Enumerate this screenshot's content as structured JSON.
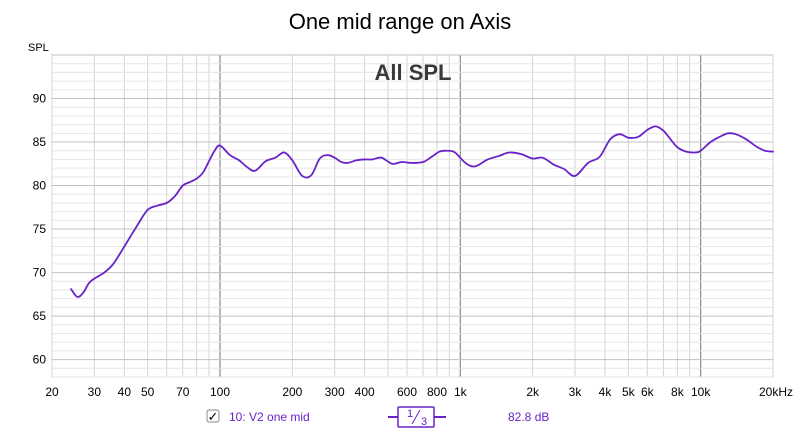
{
  "chart_data": {
    "type": "line",
    "title": "One mid range on Axis",
    "ylabel": "SPL",
    "plot_label": "All SPL",
    "x_scale": "log",
    "xlim": [
      20,
      20000
    ],
    "ylim": [
      58,
      95
    ],
    "grid": true,
    "x_ticks": [
      {
        "v": 20,
        "label": "20"
      },
      {
        "v": 30,
        "label": "30"
      },
      {
        "v": 40,
        "label": "40"
      },
      {
        "v": 50,
        "label": "50"
      },
      {
        "v": 70,
        "label": "70"
      },
      {
        "v": 100,
        "label": "100"
      },
      {
        "v": 200,
        "label": "200"
      },
      {
        "v": 300,
        "label": "300"
      },
      {
        "v": 400,
        "label": "400"
      },
      {
        "v": 600,
        "label": "600"
      },
      {
        "v": 800,
        "label": "800"
      },
      {
        "v": 1000,
        "label": "1k"
      },
      {
        "v": 2000,
        "label": "2k"
      },
      {
        "v": 3000,
        "label": "3k"
      },
      {
        "v": 4000,
        "label": "4k"
      },
      {
        "v": 5000,
        "label": "5k"
      },
      {
        "v": 6000,
        "label": "6k"
      },
      {
        "v": 8000,
        "label": "8k"
      },
      {
        "v": 10000,
        "label": "10k"
      },
      {
        "v": 20000,
        "label": "20kHz"
      }
    ],
    "y_ticks": [
      60,
      65,
      70,
      75,
      80,
      85,
      90
    ],
    "series": [
      {
        "color": "#6a22c8",
        "x": [
          24,
          25.5,
          27,
          28.5,
          30,
          33,
          36,
          40,
          45,
          50,
          55,
          60,
          65,
          70,
          75,
          80,
          85,
          90,
          95,
          100,
          110,
          120,
          130,
          140,
          155,
          170,
          185,
          200,
          220,
          240,
          260,
          280,
          300,
          320,
          340,
          370,
          400,
          430,
          470,
          520,
          570,
          630,
          700,
          760,
          820,
          880,
          950,
          1050,
          1150,
          1300,
          1450,
          1600,
          1800,
          2000,
          2200,
          2450,
          2700,
          3000,
          3400,
          3800,
          4200,
          4600,
          5000,
          5500,
          6000,
          6500,
          7000,
          7500,
          8000,
          8700,
          9500,
          10000,
          11000,
          12000,
          13000,
          14000,
          15500,
          17000,
          18500,
          20000
        ],
        "y": [
          68.1,
          67.2,
          67.7,
          68.8,
          69.3,
          70.0,
          71.0,
          73.0,
          75.3,
          77.2,
          77.7,
          78.0,
          78.8,
          80.0,
          80.4,
          80.8,
          81.5,
          82.8,
          84.0,
          84.6,
          83.5,
          82.9,
          82.1,
          81.7,
          82.8,
          83.2,
          83.8,
          82.9,
          81.1,
          81.2,
          83.1,
          83.5,
          83.2,
          82.7,
          82.6,
          82.9,
          83.0,
          83.0,
          83.2,
          82.5,
          82.7,
          82.6,
          82.7,
          83.3,
          83.9,
          84.0,
          83.8,
          82.6,
          82.2,
          83.0,
          83.4,
          83.8,
          83.6,
          83.1,
          83.2,
          82.4,
          81.9,
          81.1,
          82.6,
          83.3,
          85.3,
          85.9,
          85.5,
          85.6,
          86.4,
          86.8,
          86.3,
          85.3,
          84.4,
          83.9,
          83.8,
          84.0,
          85.0,
          85.6,
          86.0,
          85.9,
          85.3,
          84.5,
          84.0,
          83.9
        ]
      }
    ]
  },
  "legend": {
    "check_mark": "✓",
    "series_label": "10: V2 one mid",
    "smoothing_num": "1",
    "smoothing_den": "3",
    "value_readout": "82.8 dB"
  }
}
